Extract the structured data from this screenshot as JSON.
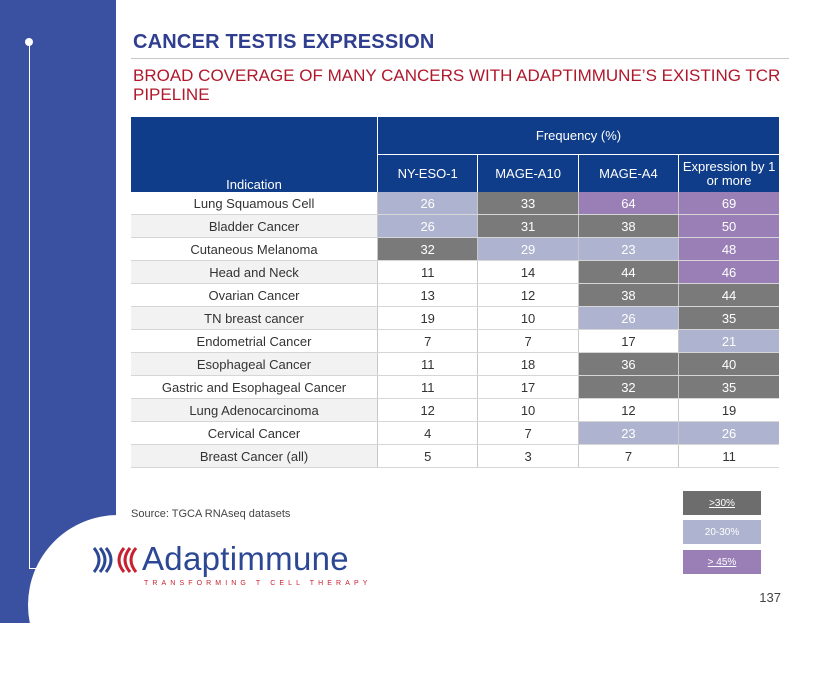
{
  "slide": {
    "title": "CANCER TESTIS EXPRESSION",
    "subtitle": "BROAD COVERAGE OF MANY CANCERS WITH ADAPTIMMUNE’S EXISTING TCR PIPELINE",
    "page_number": "137",
    "source": "Source: TGCA RNAseq datasets"
  },
  "table": {
    "indication_header": "Indication",
    "frequency_header": "Frequency (%)",
    "columns": [
      "NY-ESO-1",
      "MAGE-A10",
      "MAGE-A4",
      "Expression by 1 or more"
    ],
    "rows": [
      {
        "indication": "Lung Squamous Cell",
        "values": [
          "26",
          "33",
          "64",
          "69"
        ],
        "shading": [
          "20-30%",
          ">30%",
          "> 45%",
          "> 45%"
        ]
      },
      {
        "indication": "Bladder Cancer",
        "values": [
          "26",
          "31",
          "38",
          "50"
        ],
        "shading": [
          "20-30%",
          ">30%",
          ">30%",
          "> 45%"
        ]
      },
      {
        "indication": "Cutaneous Melanoma",
        "values": [
          "32",
          "29",
          "23",
          "48"
        ],
        "shading": [
          ">30%",
          "20-30%",
          "20-30%",
          "> 45%"
        ]
      },
      {
        "indication": "Head and Neck",
        "values": [
          "11",
          "14",
          "44",
          "46"
        ],
        "shading": [
          "",
          "",
          ">30%",
          "> 45%"
        ]
      },
      {
        "indication": "Ovarian Cancer",
        "values": [
          "13",
          "12",
          "38",
          "44"
        ],
        "shading": [
          "",
          "",
          ">30%",
          ">30%"
        ]
      },
      {
        "indication": "TN breast cancer",
        "values": [
          "19",
          "10",
          "26",
          "35"
        ],
        "shading": [
          "",
          "",
          "20-30%",
          ">30%"
        ]
      },
      {
        "indication": "Endometrial Cancer",
        "values": [
          "7",
          "7",
          "17",
          "21"
        ],
        "shading": [
          "",
          "",
          "",
          "20-30%"
        ]
      },
      {
        "indication": "Esophageal Cancer",
        "values": [
          "11",
          "18",
          "36",
          "40"
        ],
        "shading": [
          "",
          "",
          ">30%",
          ">30%"
        ]
      },
      {
        "indication": "Gastric and Esophageal Cancer",
        "values": [
          "11",
          "17",
          "32",
          "35"
        ],
        "shading": [
          "",
          "",
          ">30%",
          ">30%"
        ]
      },
      {
        "indication": "Lung Adenocarcinoma",
        "values": [
          "12",
          "10",
          "12",
          "19"
        ],
        "shading": [
          "",
          "",
          "",
          ""
        ]
      },
      {
        "indication": "Cervical Cancer",
        "values": [
          "4",
          "7",
          "23",
          "26"
        ],
        "shading": [
          "",
          "",
          "20-30%",
          "20-30%"
        ]
      },
      {
        "indication": "Breast Cancer (all)",
        "values": [
          "5",
          "3",
          "7",
          "11"
        ],
        "shading": [
          "",
          "",
          "",
          ""
        ]
      }
    ]
  },
  "legend": [
    {
      "label": ">30%",
      "color": "#6d6d6d"
    },
    {
      "label": "20-30%",
      "color": "#aeb3cf"
    },
    {
      "label": "> 45%",
      "color": "#9a7fb6"
    }
  ],
  "logo": {
    "name": "Adaptimmune",
    "tagline": "TRANSFORMING T CELL THERAPY"
  },
  "colors": {
    "side_band": "#3a50a0",
    "title": "#2f3e8f",
    "subtitle": "#b0182c",
    "header_fill": "#0f3d8a"
  }
}
